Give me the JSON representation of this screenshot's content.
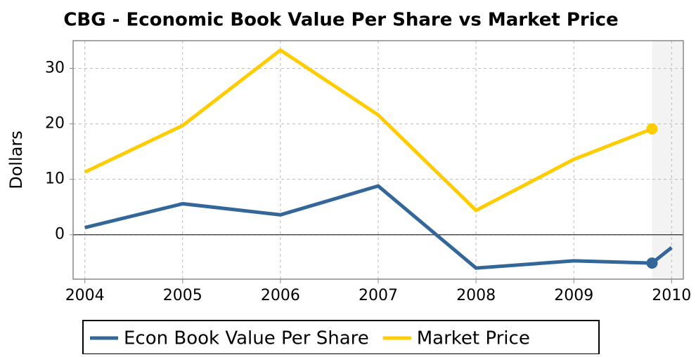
{
  "chart_data": {
    "type": "line",
    "title": "CBG - Economic Book Value Per Share vs Market Price",
    "y_label": "Dollars",
    "x": [
      2004,
      2005,
      2006,
      2007,
      2008,
      2009,
      2009.8,
      2010
    ],
    "series": [
      {
        "name": "Econ Book Value Per Share",
        "color": "#336699",
        "values": [
          1.3,
          5.6,
          3.6,
          8.8,
          -6.0,
          -4.7,
          -5.1,
          -2.3
        ]
      },
      {
        "name": "Market Price",
        "color": "#ffcc00",
        "values": [
          11.3,
          19.7,
          33.3,
          21.6,
          4.4,
          13.6,
          19.1,
          null
        ]
      }
    ],
    "marker_index": 6,
    "shaded_region": [
      2009.8,
      2010.12
    ],
    "xlim": [
      2003.88,
      2010.12
    ],
    "xticks": [
      2004,
      2005,
      2006,
      2007,
      2008,
      2009,
      2010
    ],
    "ylim": [
      -8,
      35
    ],
    "yticks": [
      0,
      10,
      20,
      30
    ],
    "grid": true,
    "legend": "bottom"
  }
}
